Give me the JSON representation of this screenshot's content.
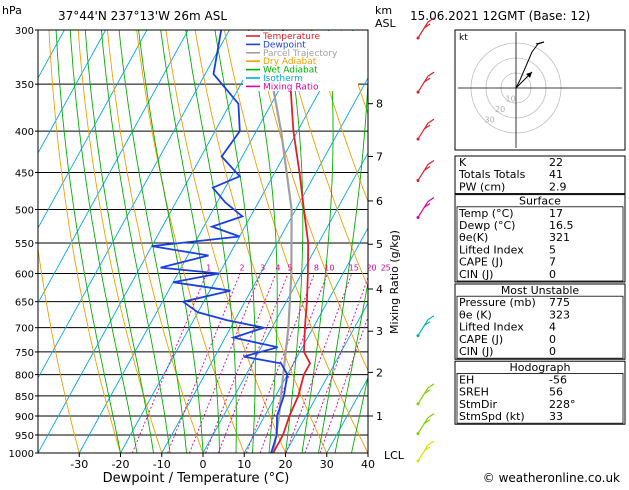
{
  "header": {
    "hpa_label": "hPa",
    "location": "37°44'N  237°13'W  26m  ASL",
    "km_label": "km",
    "asl_label": "ASL",
    "datetime": "15.06.2021  12GMT  (Base: 12)"
  },
  "axes": {
    "xlabel": "Dewpoint / Temperature (°C)",
    "mixing_label": "Mixing Ratio (g/kg)",
    "lcl_label": "LCL",
    "credit": "© weatheronline.co.uk"
  },
  "legend": [
    {
      "label": "Temperature",
      "color": "#e0202a"
    },
    {
      "label": "Dewpoint",
      "color": "#1c3fe0"
    },
    {
      "label": "Parcel Trajectory",
      "color": "#a0a0a0"
    },
    {
      "label": "Dry Adiabat",
      "color": "#f0a000"
    },
    {
      "label": "Wet Adiabat",
      "color": "#00b000"
    },
    {
      "label": "Isotherm",
      "color": "#00a8e8"
    },
    {
      "label": "Mixing Ratio",
      "color": "#e000a0"
    }
  ],
  "chart_data": {
    "type": "skew-t",
    "pressure_levels": [
      300,
      350,
      400,
      450,
      500,
      550,
      600,
      650,
      700,
      750,
      800,
      850,
      900,
      950,
      1000
    ],
    "x_ticks": [
      -30,
      -20,
      -10,
      0,
      10,
      20,
      30,
      40
    ],
    "xlim": [
      -40,
      40
    ],
    "ylim": [
      1000,
      300
    ],
    "km_ticks": [
      {
        "label": "1",
        "p": 900
      },
      {
        "label": "2",
        "p": 795
      },
      {
        "label": "3",
        "p": 707
      },
      {
        "label": "4",
        "p": 627
      },
      {
        "label": "5",
        "p": 552
      },
      {
        "label": "6",
        "p": 488
      },
      {
        "label": "7",
        "p": 430
      },
      {
        "label": "8",
        "p": 370
      }
    ],
    "mixing_ratio_labels": [
      "1",
      "2",
      "3",
      "4",
      "5",
      "8",
      "10",
      "15",
      "20",
      "25"
    ],
    "mixing_ratio_values": [
      1,
      2,
      3,
      4,
      5,
      8,
      10,
      15,
      20,
      25
    ],
    "temperature": [
      {
        "p": 1000,
        "t": 17
      },
      {
        "p": 950,
        "t": 17
      },
      {
        "p": 900,
        "t": 16
      },
      {
        "p": 850,
        "t": 15.5
      },
      {
        "p": 800,
        "t": 14
      },
      {
        "p": 775,
        "t": 14
      },
      {
        "p": 750,
        "t": 11
      },
      {
        "p": 700,
        "t": 8
      },
      {
        "p": 650,
        "t": 5
      },
      {
        "p": 600,
        "t": 1.5
      },
      {
        "p": 550,
        "t": -2.5
      },
      {
        "p": 500,
        "t": -8
      },
      {
        "p": 450,
        "t": -14
      },
      {
        "p": 400,
        "t": -21
      },
      {
        "p": 350,
        "t": -28
      },
      {
        "p": 300,
        "t": -37
      }
    ],
    "dewpoint": [
      {
        "p": 1000,
        "t": 16.5
      },
      {
        "p": 950,
        "t": 15.5
      },
      {
        "p": 900,
        "t": 13
      },
      {
        "p": 850,
        "t": 12
      },
      {
        "p": 800,
        "t": 10
      },
      {
        "p": 775,
        "t": 7
      },
      {
        "p": 760,
        "t": -3
      },
      {
        "p": 740,
        "t": 4
      },
      {
        "p": 720,
        "t": -8
      },
      {
        "p": 700,
        "t": -2
      },
      {
        "p": 685,
        "t": -12
      },
      {
        "p": 670,
        "t": -20
      },
      {
        "p": 650,
        "t": -25
      },
      {
        "p": 630,
        "t": -15
      },
      {
        "p": 615,
        "t": -30
      },
      {
        "p": 600,
        "t": -20
      },
      {
        "p": 590,
        "t": -35
      },
      {
        "p": 570,
        "t": -25
      },
      {
        "p": 555,
        "t": -40
      },
      {
        "p": 540,
        "t": -20
      },
      {
        "p": 525,
        "t": -28
      },
      {
        "p": 510,
        "t": -22
      },
      {
        "p": 490,
        "t": -28
      },
      {
        "p": 470,
        "t": -33
      },
      {
        "p": 455,
        "t": -28
      },
      {
        "p": 430,
        "t": -35
      },
      {
        "p": 400,
        "t": -34
      },
      {
        "p": 370,
        "t": -38
      },
      {
        "p": 340,
        "t": -48
      },
      {
        "p": 300,
        "t": -52
      }
    ],
    "parcel": [
      {
        "p": 1000,
        "t": 17
      },
      {
        "p": 975,
        "t": 16.2
      },
      {
        "p": 900,
        "t": 13.5
      },
      {
        "p": 800,
        "t": 9
      },
      {
        "p": 700,
        "t": 4
      },
      {
        "p": 600,
        "t": -2.5
      },
      {
        "p": 500,
        "t": -11
      },
      {
        "p": 400,
        "t": -24
      },
      {
        "p": 300,
        "t": -42
      }
    ]
  },
  "hodograph": {
    "label": "kt",
    "ring_labels": [
      "10",
      "20",
      "30"
    ]
  },
  "stats": {
    "top": [
      {
        "label": "K",
        "value": "22"
      },
      {
        "label": "Totals Totals",
        "value": "41"
      },
      {
        "label": "PW (cm)",
        "value": "2.9"
      }
    ],
    "surface": {
      "title": "Surface",
      "rows": [
        {
          "label": "Temp (°C)",
          "value": "17"
        },
        {
          "label": "Dewp (°C)",
          "value": "16.5"
        },
        {
          "label": "θe(K)",
          "value": "321"
        },
        {
          "label": "Lifted Index",
          "value": "5"
        },
        {
          "label": "CAPE (J)",
          "value": "7"
        },
        {
          "label": "CIN (J)",
          "value": "0"
        }
      ]
    },
    "unstable": {
      "title": "Most Unstable",
      "rows": [
        {
          "label": "Pressure (mb)",
          "value": "775"
        },
        {
          "label": "θe (K)",
          "value": "323"
        },
        {
          "label": "Lifted Index",
          "value": "4"
        },
        {
          "label": "CAPE (J)",
          "value": "0"
        },
        {
          "label": "CIN (J)",
          "value": "0"
        }
      ]
    },
    "hodo": {
      "title": "Hodograph",
      "rows": [
        {
          "label": "EH",
          "value": "-56"
        },
        {
          "label": "SREH",
          "value": "56"
        },
        {
          "label": "StmDir",
          "value": "228°"
        },
        {
          "label": "StmSpd (kt)",
          "value": "33"
        }
      ]
    }
  }
}
